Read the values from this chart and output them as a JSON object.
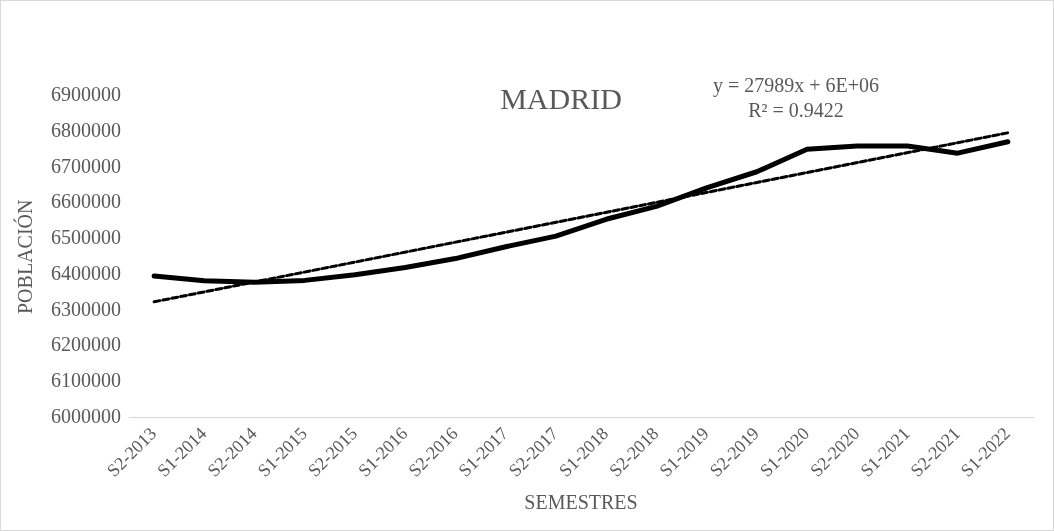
{
  "chart_data": {
    "type": "line",
    "title": "MADRID",
    "xlabel": "SEMESTRES",
    "ylabel": "POBLACIÓN",
    "categories": [
      "S2-2013",
      "S1-2014",
      "S2-2014",
      "S1-2015",
      "S2-2015",
      "S1-2016",
      "S2-2016",
      "S1-2017",
      "S2-2017",
      "S1-2018",
      "S2-2018",
      "S1-2019",
      "S2-2019",
      "S1-2020",
      "S2-2020",
      "S1-2021",
      "S2-2021",
      "S1-2022"
    ],
    "series": [
      {
        "color": "#000000",
        "line_style": "solid",
        "values": [
          6396000,
          6383000,
          6379000,
          6384000,
          6400000,
          6420000,
          6445000,
          6478000,
          6508000,
          6555000,
          6591000,
          6643000,
          6688000,
          6751000,
          6760000,
          6760000,
          6740000,
          6772000
        ]
      },
      {
        "color": "#000000",
        "line_style": "dashed",
        "values": [
          6324000,
          null,
          null,
          null,
          null,
          null,
          null,
          null,
          null,
          null,
          null,
          null,
          null,
          null,
          null,
          null,
          null,
          6797000
        ]
      }
    ],
    "annotations": [
      "y = 27989x + 6E+06",
      "R² = 0.9422"
    ],
    "ylim": [
      6000000,
      6900000
    ],
    "yticks": [
      6000000,
      6100000,
      6200000,
      6300000,
      6400000,
      6500000,
      6600000,
      6700000,
      6800000,
      6900000
    ],
    "grid": false,
    "legend": false,
    "marker": "none"
  }
}
